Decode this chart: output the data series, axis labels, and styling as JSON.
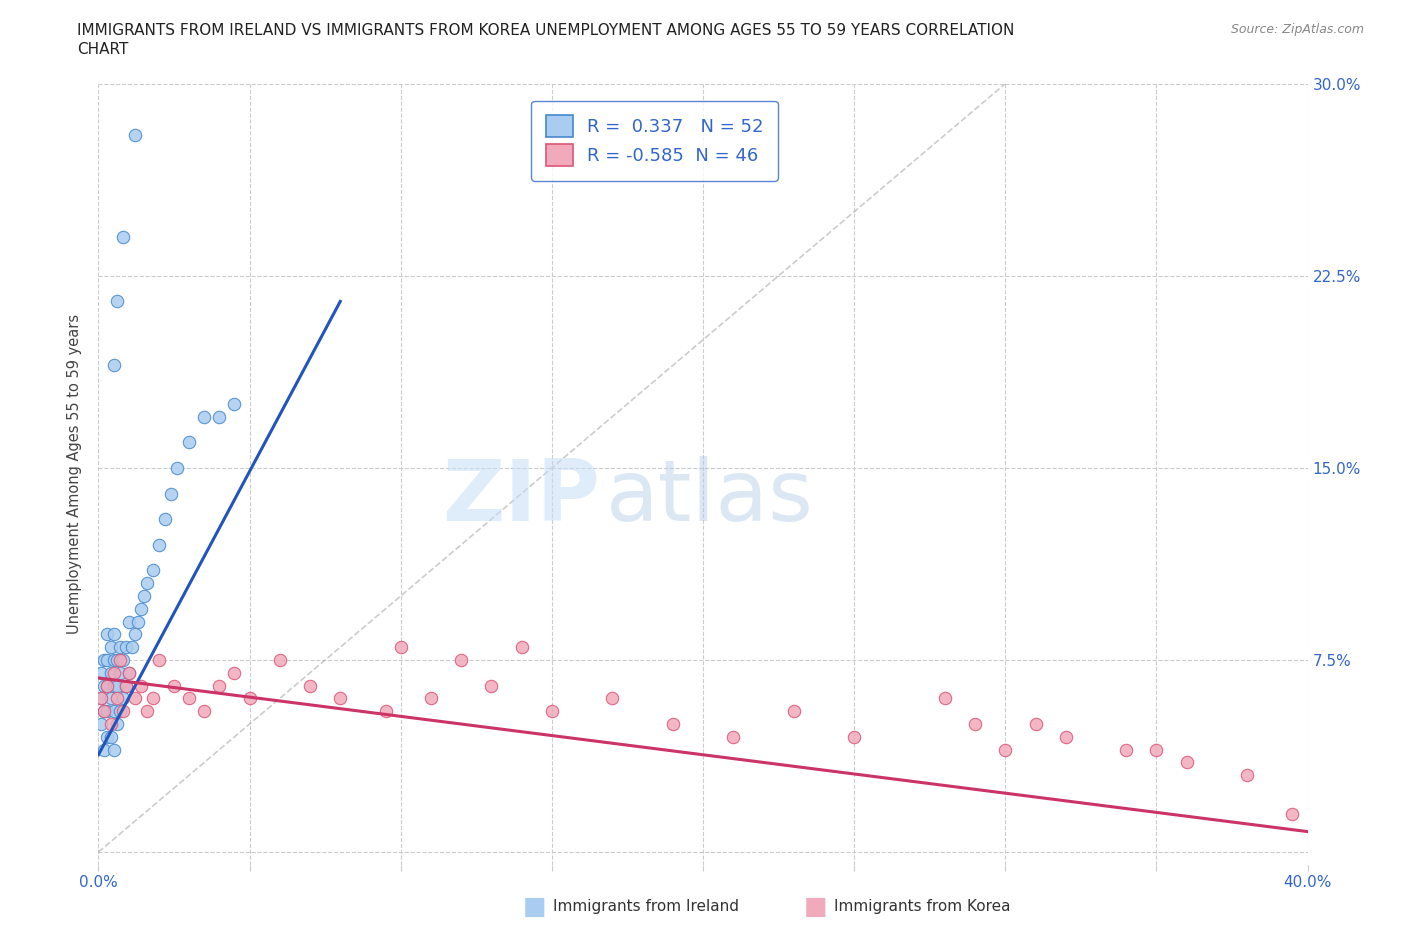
{
  "title_line1": "IMMIGRANTS FROM IRELAND VS IMMIGRANTS FROM KOREA UNEMPLOYMENT AMONG AGES 55 TO 59 YEARS CORRELATION",
  "title_line2": "CHART",
  "source": "Source: ZipAtlas.com",
  "ylabel": "Unemployment Among Ages 55 to 59 years",
  "xlim": [
    0.0,
    0.4
  ],
  "ylim": [
    -0.005,
    0.3
  ],
  "ireland_color": "#aaccf0",
  "korea_color": "#f0aabb",
  "ireland_edge": "#4488cc",
  "korea_edge": "#dd5577",
  "trend_ireland_color": "#2255bb",
  "trend_korea_color": "#cc3366",
  "diag_color": "#aaaaaa",
  "R_ireland": 0.337,
  "N_ireland": 52,
  "R_korea": -0.585,
  "N_korea": 46,
  "legend_ireland": "Immigrants from Ireland",
  "legend_korea": "Immigrants from Korea",
  "watermark_zip": "ZIP",
  "watermark_atlas": "atlas",
  "background_color": "#ffffff",
  "ireland_trend_x0": 0.0,
  "ireland_trend_y0": 0.038,
  "ireland_trend_x1": 0.08,
  "ireland_trend_y1": 0.215,
  "korea_trend_x0": 0.0,
  "korea_trend_y0": 0.068,
  "korea_trend_x1": 0.4,
  "korea_trend_y1": 0.008,
  "ireland_x": [
    0.001,
    0.001,
    0.001,
    0.002,
    0.002,
    0.002,
    0.002,
    0.003,
    0.003,
    0.003,
    0.003,
    0.003,
    0.004,
    0.004,
    0.004,
    0.004,
    0.005,
    0.005,
    0.005,
    0.005,
    0.005,
    0.006,
    0.006,
    0.006,
    0.007,
    0.007,
    0.007,
    0.008,
    0.008,
    0.009,
    0.009,
    0.01,
    0.01,
    0.011,
    0.012,
    0.013,
    0.014,
    0.015,
    0.016,
    0.018,
    0.02,
    0.022,
    0.024,
    0.026,
    0.03,
    0.035,
    0.04,
    0.045,
    0.005,
    0.006,
    0.008,
    0.012
  ],
  "ireland_y": [
    0.05,
    0.06,
    0.07,
    0.04,
    0.055,
    0.065,
    0.075,
    0.045,
    0.055,
    0.065,
    0.075,
    0.085,
    0.045,
    0.06,
    0.07,
    0.08,
    0.04,
    0.055,
    0.065,
    0.075,
    0.085,
    0.05,
    0.065,
    0.075,
    0.055,
    0.07,
    0.08,
    0.06,
    0.075,
    0.065,
    0.08,
    0.07,
    0.09,
    0.08,
    0.085,
    0.09,
    0.095,
    0.1,
    0.105,
    0.11,
    0.12,
    0.13,
    0.14,
    0.15,
    0.16,
    0.17,
    0.17,
    0.175,
    0.19,
    0.215,
    0.24,
    0.28
  ],
  "korea_x": [
    0.001,
    0.002,
    0.003,
    0.004,
    0.005,
    0.006,
    0.007,
    0.008,
    0.009,
    0.01,
    0.012,
    0.014,
    0.016,
    0.018,
    0.02,
    0.025,
    0.03,
    0.035,
    0.04,
    0.045,
    0.05,
    0.06,
    0.07,
    0.08,
    0.095,
    0.11,
    0.13,
    0.15,
    0.17,
    0.19,
    0.21,
    0.23,
    0.25,
    0.28,
    0.3,
    0.32,
    0.34,
    0.36,
    0.38,
    0.395,
    0.1,
    0.12,
    0.14,
    0.29,
    0.31,
    0.35
  ],
  "korea_y": [
    0.06,
    0.055,
    0.065,
    0.05,
    0.07,
    0.06,
    0.075,
    0.055,
    0.065,
    0.07,
    0.06,
    0.065,
    0.055,
    0.06,
    0.075,
    0.065,
    0.06,
    0.055,
    0.065,
    0.07,
    0.06,
    0.075,
    0.065,
    0.06,
    0.055,
    0.06,
    0.065,
    0.055,
    0.06,
    0.05,
    0.045,
    0.055,
    0.045,
    0.06,
    0.04,
    0.045,
    0.04,
    0.035,
    0.03,
    0.015,
    0.08,
    0.075,
    0.08,
    0.05,
    0.05,
    0.04
  ]
}
